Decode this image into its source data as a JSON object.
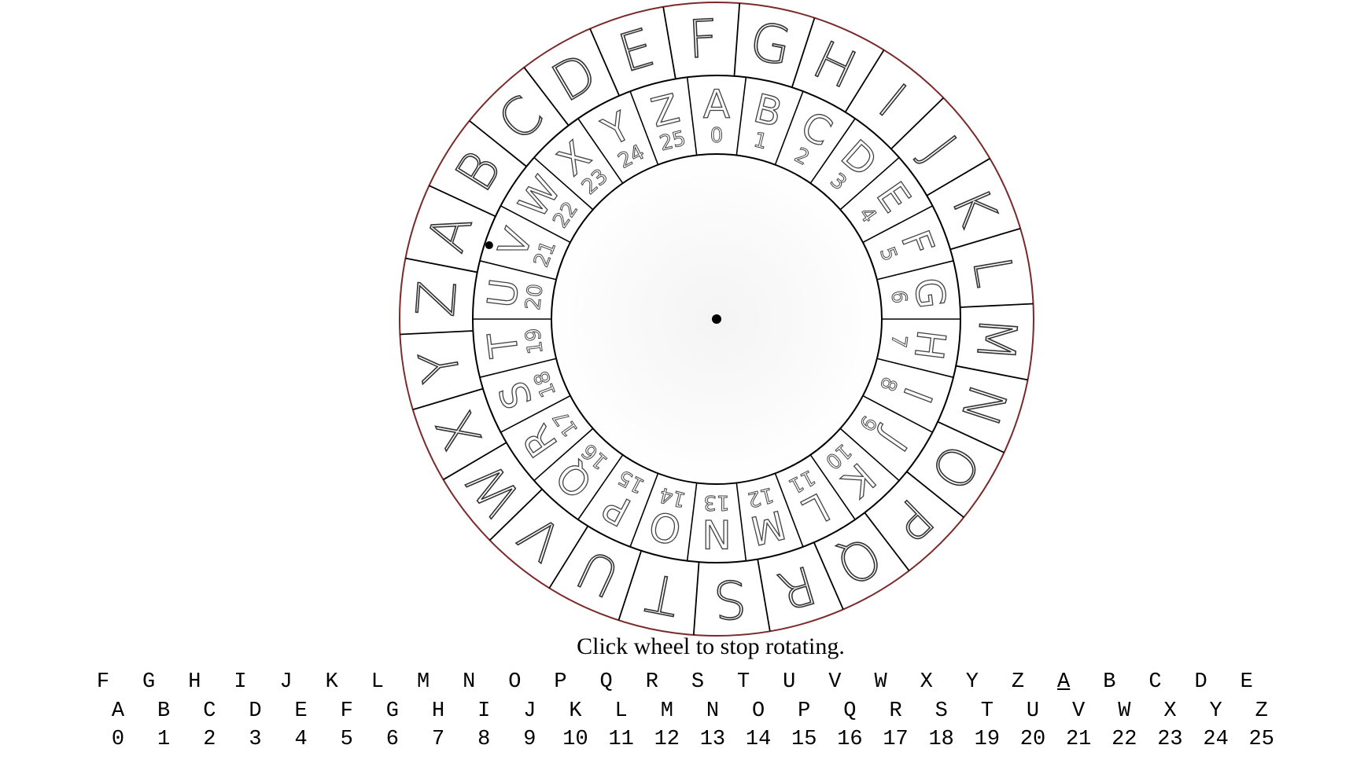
{
  "instruction": "Click wheel to stop rotating.",
  "wheel": {
    "outer_ring": [
      "A",
      "B",
      "C",
      "D",
      "E",
      "F",
      "G",
      "H",
      "I",
      "J",
      "K",
      "L",
      "M",
      "N",
      "O",
      "P",
      "Q",
      "R",
      "S",
      "T",
      "U",
      "V",
      "W",
      "X",
      "Y",
      "Z"
    ],
    "inner_ring_letters": [
      "A",
      "B",
      "C",
      "D",
      "E",
      "F",
      "G",
      "H",
      "I",
      "J",
      "K",
      "L",
      "M",
      "N",
      "O",
      "P",
      "Q",
      "R",
      "S",
      "T",
      "U",
      "V",
      "W",
      "X",
      "Y",
      "Z"
    ],
    "inner_ring_numbers": [
      "0",
      "1",
      "2",
      "3",
      "4",
      "5",
      "6",
      "7",
      "8",
      "9",
      "10",
      "11",
      "12",
      "13",
      "14",
      "15",
      "16",
      "17",
      "18",
      "19",
      "20",
      "21",
      "22",
      "23",
      "24",
      "25"
    ],
    "shift": 5,
    "ring_color": "#000000",
    "rim_color": "#7a2a2a",
    "text_color": "#444444"
  },
  "table": {
    "shifted_row": [
      "F",
      "G",
      "H",
      "I",
      "J",
      "K",
      "L",
      "M",
      "N",
      "O",
      "P",
      "Q",
      "R",
      "S",
      "T",
      "U",
      "V",
      "W",
      "X",
      "Y",
      "Z",
      "A",
      "B",
      "C",
      "D",
      "E"
    ],
    "highlighted_index": 21,
    "plain_row": [
      "A",
      "B",
      "C",
      "D",
      "E",
      "F",
      "G",
      "H",
      "I",
      "J",
      "K",
      "L",
      "M",
      "N",
      "O",
      "P",
      "Q",
      "R",
      "S",
      "T",
      "U",
      "V",
      "W",
      "X",
      "Y",
      "Z"
    ],
    "number_row": [
      "0",
      "1",
      "2",
      "3",
      "4",
      "5",
      "6",
      "7",
      "8",
      "9",
      "10",
      "11",
      "12",
      "13",
      "14",
      "15",
      "16",
      "17",
      "18",
      "19",
      "20",
      "21",
      "22",
      "23",
      "24",
      "25"
    ]
  }
}
